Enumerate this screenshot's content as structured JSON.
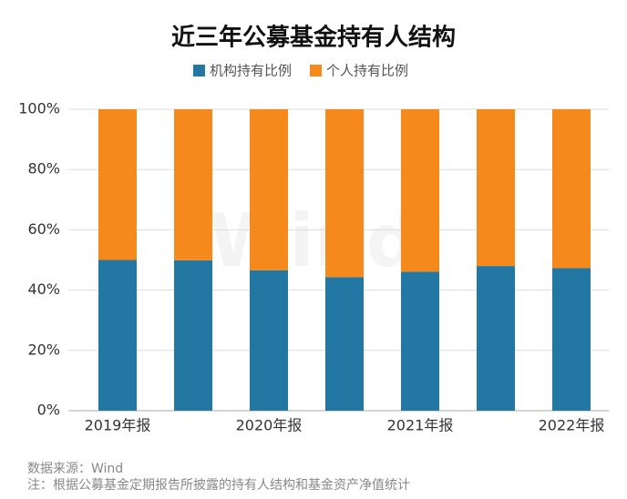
{
  "chart_data": {
    "type": "stacked_bar",
    "title": "近三年公募基金持有人结构",
    "categories": [
      "2019年报",
      null,
      "2020年报",
      null,
      "2021年报",
      null,
      "2022年报"
    ],
    "series": [
      {
        "name": "机构持有比例",
        "color": "#2277a3",
        "values": [
          50.0,
          49.9,
          46.6,
          44.3,
          46.1,
          48.0,
          47.3
        ]
      },
      {
        "name": "个人持有比例",
        "color": "#f5891c",
        "values": [
          50.0,
          50.1,
          53.4,
          55.7,
          53.9,
          52.0,
          52.7
        ]
      }
    ],
    "ylim": [
      0,
      100
    ],
    "yticks": [
      {
        "value": 0,
        "label": "0%"
      },
      {
        "value": 20,
        "label": "20%"
      },
      {
        "value": 40,
        "label": "40%"
      },
      {
        "value": 60,
        "label": "60%"
      },
      {
        "value": 80,
        "label": "80%"
      },
      {
        "value": 100,
        "label": "100%"
      }
    ],
    "grid": true,
    "legend": "top",
    "watermark": "Wind",
    "source": "数据来源：Wind",
    "note": "注：根据公募基金定期报告所披露的持有人结构和基金资产净值统计"
  }
}
